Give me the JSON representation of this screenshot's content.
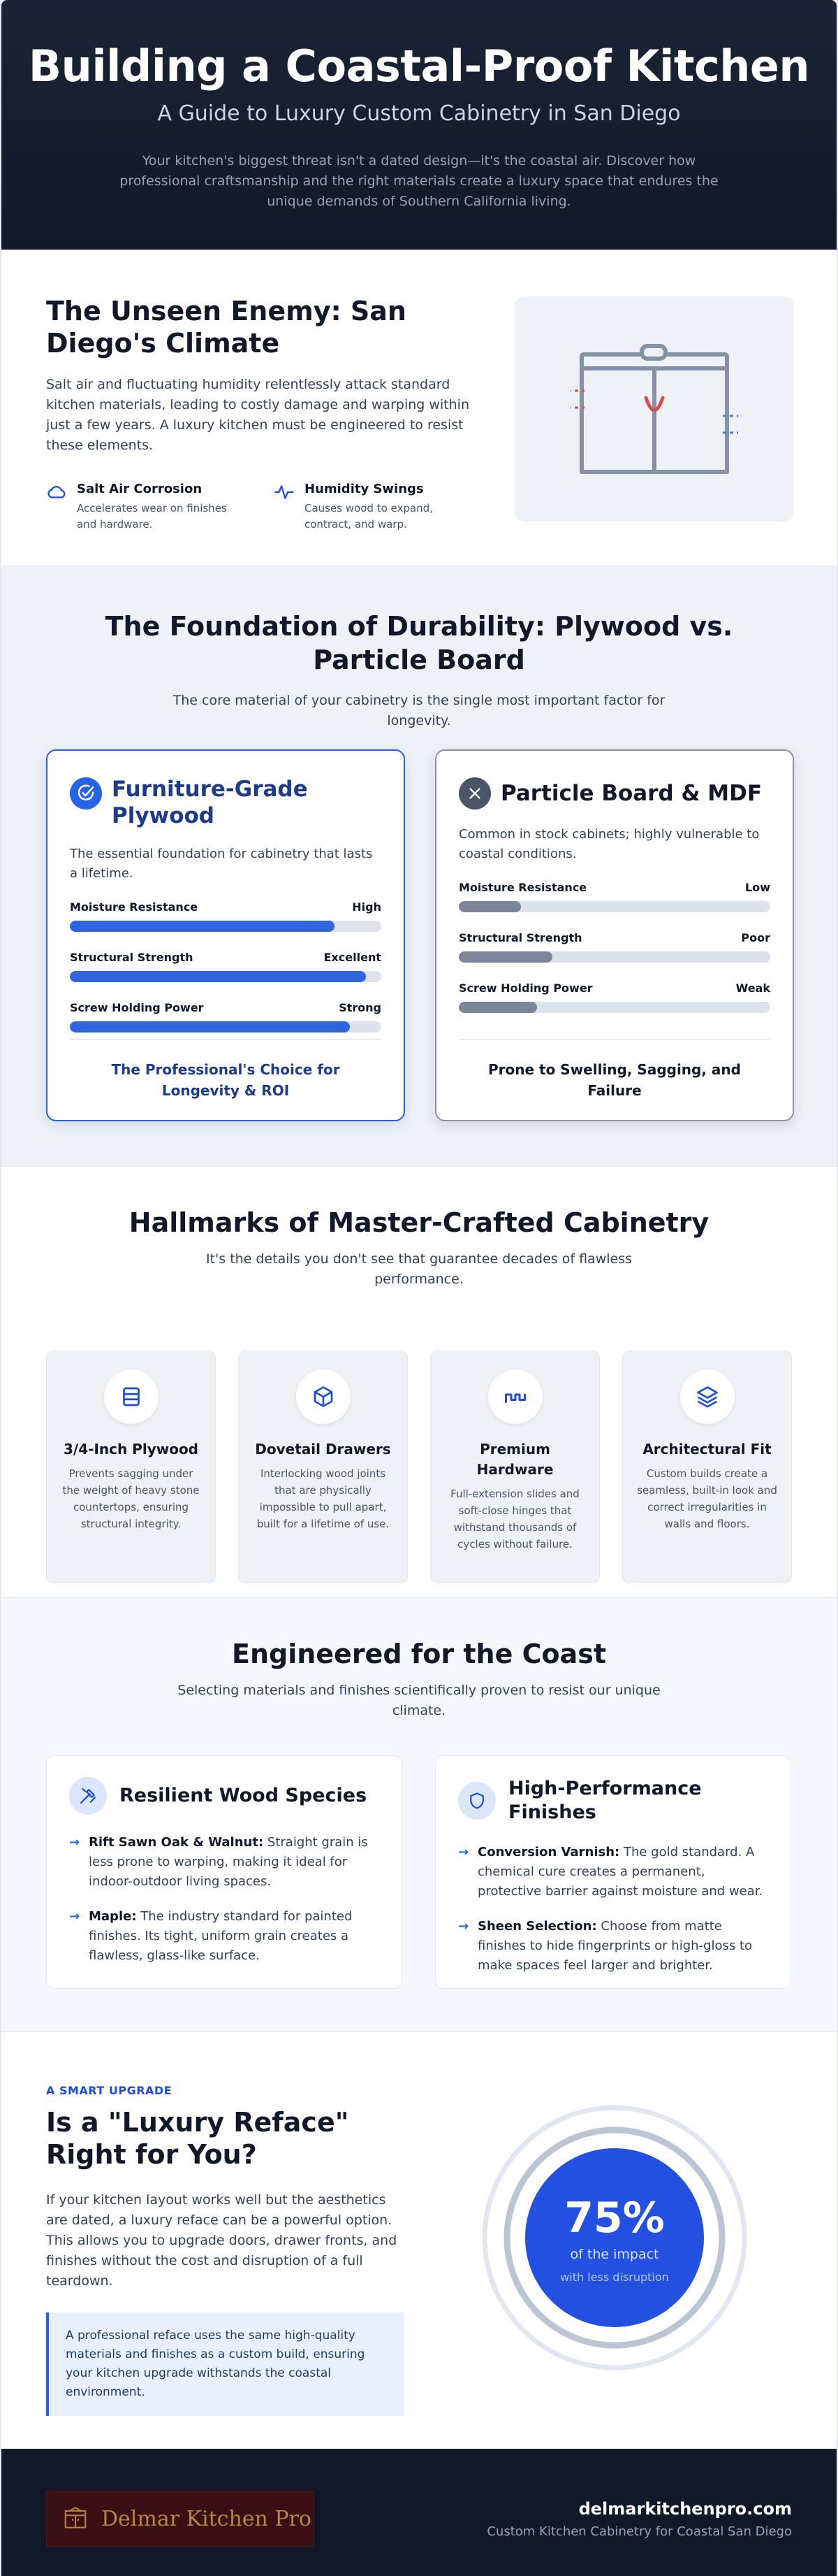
{
  "hero": {
    "title": "Building a Coastal-Proof Kitchen",
    "subtitle": "A Guide to Luxury Custom Cabinetry in San Diego",
    "lead": "Your kitchen's biggest threat isn't a dated design—it's the coastal air. Discover how professional craftsmanship and the right materials create a luxury space that endures the unique demands of Southern California living."
  },
  "climate": {
    "title": "The Unseen Enemy: San Diego's Climate",
    "description": "Salt air and fluctuating humidity relentlessly attack standard kitchen materials, leading to costly damage and warping within just a few years. A luxury kitchen must be engineered to resist these elements.",
    "facts": [
      {
        "icon": "cloud-icon",
        "title": "Salt Air Corrosion",
        "text": "Accelerates wear on finishes and hardware."
      },
      {
        "icon": "pulse-icon",
        "title": "Humidity Swings",
        "text": "Causes wood to expand, contract, and warp."
      }
    ]
  },
  "foundation": {
    "title": "The Foundation of Durability: Plywood vs. Particle Board",
    "intro": "The core material of your cabinetry is the single most important factor for longevity.",
    "plywood": {
      "icon": "check-circle-icon",
      "name": "Furniture-Grade Plywood",
      "description": "The essential foundation for cabinetry that lasts a lifetime.",
      "metrics": [
        {
          "label": "Moisture Resistance",
          "rating": "High",
          "level": 0.85
        },
        {
          "label": "Structural Strength",
          "rating": "Excellent",
          "level": 0.95
        },
        {
          "label": "Screw Holding Power",
          "rating": "Strong",
          "level": 0.9
        }
      ],
      "verdict": "The Professional's Choice for Longevity & ROI"
    },
    "particle": {
      "icon": "x-circle-icon",
      "name": "Particle Board & MDF",
      "description": "Common in stock cabinets; highly vulnerable to coastal conditions.",
      "metrics": [
        {
          "label": "Moisture Resistance",
          "rating": "Low",
          "level": 0.2
        },
        {
          "label": "Structural Strength",
          "rating": "Poor",
          "level": 0.3
        },
        {
          "label": "Screw Holding Power",
          "rating": "Weak",
          "level": 0.25
        }
      ],
      "verdict": "Prone to Swelling, Sagging, and Failure"
    }
  },
  "hallmarks": {
    "title": "Hallmarks of Master-Crafted Cabinetry",
    "intro": "It's the details you don't see that guarantee decades of flawless performance.",
    "items": [
      {
        "icon": "layers-rect-icon",
        "title": "3/4-Inch Plywood",
        "text": "Prevents sagging under the weight of heavy stone countertops, ensuring structural integrity."
      },
      {
        "icon": "box-icon",
        "title": "Dovetail Drawers",
        "text": "Interlocking wood joints that are physically impossible to pull apart, built for a lifetime of use."
      },
      {
        "icon": "hinge-icon",
        "title": "Premium Hardware",
        "text": "Full-extension slides and soft-close hinges that withstand thousands of cycles without failure."
      },
      {
        "icon": "stack-icon",
        "title": "Architectural Fit",
        "text": "Custom builds create a seamless, built-in look and correct irregularities in walls and floors."
      }
    ]
  },
  "coast": {
    "title": "Engineered for the Coast",
    "intro": "Selecting materials and finishes scientifically proven to resist our unique climate.",
    "wood": {
      "icon": "tools-icon",
      "name": "Resilient Wood Species",
      "items": [
        {
          "term": "Rift Sawn Oak & Walnut:",
          "text": "Straight grain is less prone to warping, making it ideal for indoor-outdoor living spaces."
        },
        {
          "term": "Maple:",
          "text": "The industry standard for painted finishes. Its tight, uniform grain creates a flawless, glass-like surface."
        }
      ]
    },
    "finishes": {
      "icon": "shield-icon",
      "name": "High-Performance Finishes",
      "items": [
        {
          "term": "Conversion Varnish:",
          "text": "The gold standard. A chemical cure creates a permanent, protective barrier against moisture and wear."
        },
        {
          "term": "Sheen Selection:",
          "text": "Choose from matte finishes to hide fingerprints or high-gloss to make spaces feel larger and brighter."
        }
      ]
    }
  },
  "upgrade": {
    "kicker": "A SMART UPGRADE",
    "title": "Is a \"Luxury Reface\" Right for You?",
    "description": "If your kitchen layout works well but the aesthetics are dated, a luxury reface can be a powerful option. This allows you to upgrade doors, drawer fronts, and finishes without the cost and disruption of a full teardown.",
    "quote": "A professional reface uses the same high-quality materials and finishes as a custom build, ensuring your kitchen upgrade withstands the coastal environment.",
    "stat_value": "75%",
    "stat_label": "of the impact",
    "stat_sub": "with less disruption"
  },
  "footer": {
    "logo_text": "Delmar Kitchen Pro",
    "url": "delmarkitchenpro.com",
    "tagline": "Custom Kitchen Cabinetry for Coastal San Diego"
  },
  "colors": {
    "accent": "#2563eb",
    "navy": "#111827",
    "danger": "#dc4c4c"
  }
}
